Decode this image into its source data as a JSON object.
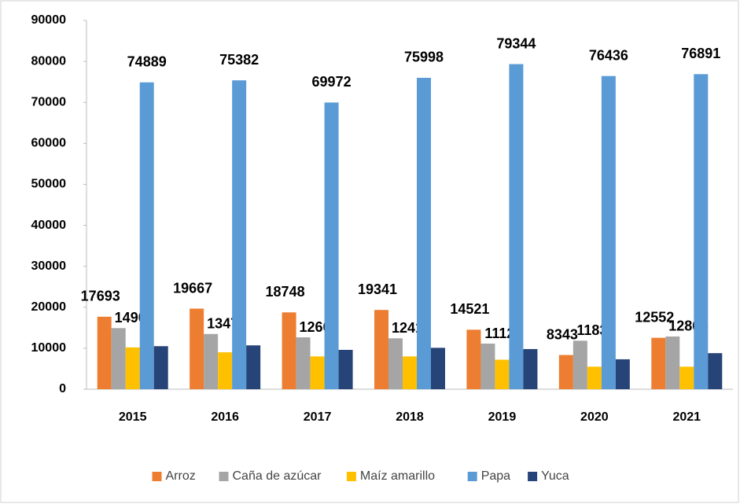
{
  "chart_data": {
    "type": "bar",
    "categories": [
      "2015",
      "2016",
      "2017",
      "2018",
      "2019",
      "2020",
      "2021"
    ],
    "series": [
      {
        "name": "Arroz",
        "color": "#ED7D31",
        "data_labels": true,
        "values": [
          17693,
          19667,
          18748,
          19341,
          14521,
          8343,
          12552
        ]
      },
      {
        "name": "Caña de azúcar",
        "color": "#A5A5A5",
        "data_labels": true,
        "values": [
          14909,
          13475,
          12661,
          12417,
          11125,
          11838,
          12864
        ]
      },
      {
        "name": "Maíz amarillo",
        "color": "#FFC000",
        "data_labels": false,
        "values": [
          10200,
          9000,
          8000,
          8000,
          7200,
          5500,
          5500
        ]
      },
      {
        "name": "Papa",
        "color": "#5B9BD5",
        "data_labels": true,
        "values": [
          74889,
          75382,
          69972,
          75998,
          79344,
          76436,
          76891
        ]
      },
      {
        "name": "Yuca",
        "color": "#264478",
        "data_labels": false,
        "values": [
          10500,
          10700,
          9600,
          10100,
          9800,
          7300,
          8800
        ]
      }
    ],
    "ylim": [
      0,
      90000
    ],
    "yticks": [
      0,
      10000,
      20000,
      30000,
      40000,
      50000,
      60000,
      70000,
      80000,
      90000
    ],
    "grid": false,
    "legend": "bottom"
  }
}
